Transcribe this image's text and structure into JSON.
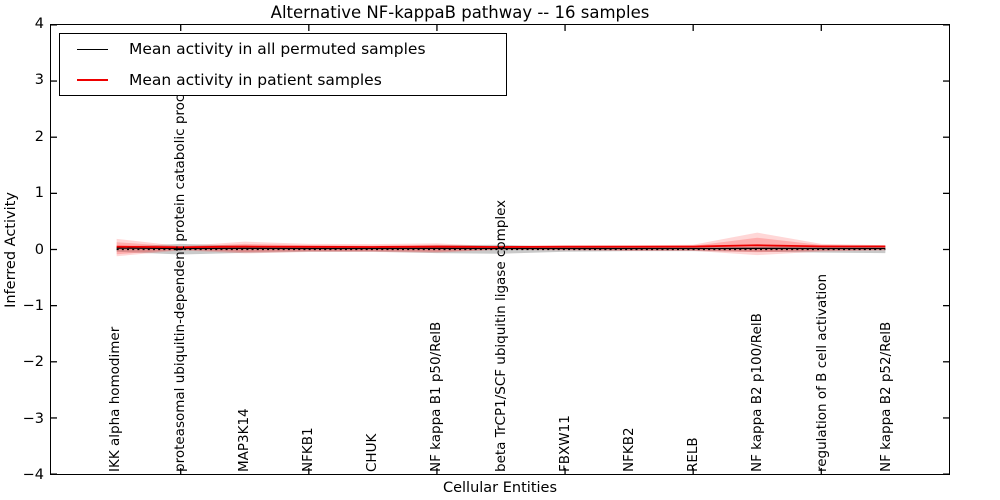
{
  "title": "Alternative NF-kappaB pathway -- 16 samples",
  "axes": {
    "xlabel": "Cellular Entities",
    "ylabel": "Inferred Activity",
    "yticks": [
      "4",
      "3",
      "2",
      "1",
      "0",
      "−1",
      "−2",
      "−3",
      "−4"
    ]
  },
  "legend": {
    "items": [
      {
        "label": "Mean activity in all permuted samples",
        "color": "#000000"
      },
      {
        "label": "Mean activity in patient samples",
        "color": "#ee0000"
      }
    ]
  },
  "chart_data": {
    "type": "line",
    "title": "Alternative NF-kappaB pathway -- 16 samples",
    "xlabel": "Cellular Entities",
    "ylabel": "Inferred Activity",
    "ylim": [
      -4,
      4
    ],
    "ytick_values": [
      4,
      3,
      2,
      1,
      0,
      -1,
      -2,
      -3,
      -4
    ],
    "grid": false,
    "legend_position": "upper left",
    "categories": [
      "IKK alpha homodimer",
      "proteasomal ubiquitin-dependent protein catabolic process",
      "MAP3K14",
      "NFKB1",
      "CHUK",
      "NF kappa B1 p50/RelB",
      "beta TrCP1/SCF ubiquitin ligase complex",
      "FBXW11",
      "NFKB2",
      "RELB",
      "NF kappa B2 p100/RelB",
      "regulation of B cell activation",
      "NF kappa B2 p52/RelB"
    ],
    "series": [
      {
        "name": "Mean activity in all permuted samples",
        "color": "#000000",
        "line_width": 1.2,
        "values": [
          0.025,
          0.018,
          0.02,
          0.018,
          0.018,
          0.02,
          0.018,
          0.018,
          0.018,
          0.018,
          0.02,
          0.018,
          0.018
        ]
      },
      {
        "name": "Mean activity in patient samples",
        "color": "#ee0000",
        "line_width": 1.8,
        "values": [
          0.05,
          0.04,
          0.052,
          0.048,
          0.045,
          0.05,
          0.045,
          0.05,
          0.05,
          0.052,
          0.075,
          0.055,
          0.055
        ]
      }
    ],
    "bands": [
      {
        "name": "permuted-std-band",
        "fill": "#777777",
        "opacity": 0.4,
        "upper": [
          0.05,
          0.1,
          0.07,
          0.04,
          0.04,
          0.075,
          0.085,
          0.04,
          0.03,
          0.03,
          0.05,
          0.065,
          0.065
        ],
        "lower": [
          -0.04,
          -0.09,
          -0.06,
          -0.04,
          -0.04,
          -0.065,
          -0.075,
          -0.04,
          -0.03,
          -0.03,
          -0.04,
          -0.055,
          -0.065
        ]
      },
      {
        "name": "patient-std-band-outer",
        "fill": "#ff2222",
        "opacity": 0.18,
        "upper": [
          0.19,
          0.06,
          0.14,
          0.1,
          0.095,
          0.11,
          0.055,
          0.075,
          0.075,
          0.085,
          0.3,
          0.1,
          0.075
        ],
        "lower": [
          -0.12,
          -0.015,
          -0.07,
          -0.045,
          -0.045,
          -0.055,
          -0.005,
          -0.015,
          -0.025,
          -0.025,
          -0.1,
          -0.035,
          -0.015
        ]
      },
      {
        "name": "patient-std-band-inner",
        "fill": "#ff2222",
        "opacity": 0.22,
        "upper": [
          0.13,
          0.05,
          0.1,
          0.075,
          0.07,
          0.085,
          0.045,
          0.06,
          0.06,
          0.065,
          0.21,
          0.08,
          0.06
        ],
        "lower": [
          -0.085,
          -0.005,
          -0.045,
          -0.03,
          -0.03,
          -0.04,
          0.0,
          -0.005,
          -0.015,
          -0.015,
          -0.05,
          -0.02,
          -0.005
        ]
      }
    ],
    "zero_line": {
      "value": 0,
      "style": "dotted",
      "color": "#000000"
    }
  }
}
